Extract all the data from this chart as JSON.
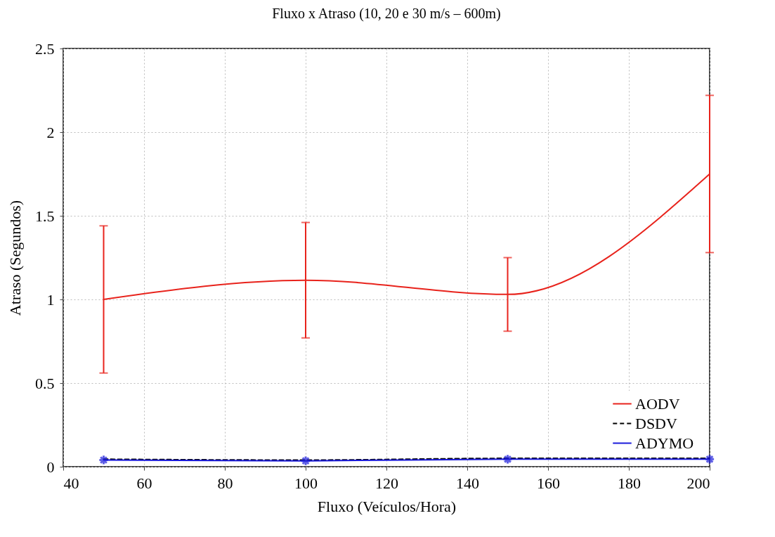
{
  "chart_data": {
    "type": "line",
    "title": "Fluxo x Atraso (10, 20 e 30 m/s – 600m)",
    "xlabel": "Fluxo (Veículos/Hora)",
    "ylabel": "Atraso (Segundos)",
    "x": [
      50,
      100,
      150,
      200
    ],
    "series": [
      {
        "name": "AODV",
        "color": "#e8231c",
        "values": [
          1.0,
          1.115,
          1.03,
          1.75
        ],
        "errors": [
          [
            0.56,
            1.44
          ],
          [
            0.77,
            1.46
          ],
          [
            0.81,
            1.25
          ],
          [
            1.28,
            2.22
          ]
        ],
        "line_style": "solid"
      },
      {
        "name": "DSDV",
        "color": "#000000",
        "values": [
          0.045,
          0.04,
          0.05,
          0.05
        ],
        "line_style": "dashed"
      },
      {
        "name": "ADYMO",
        "color": "#1a1adb",
        "values": [
          0.04,
          0.035,
          0.045,
          0.045
        ],
        "line_style": "solid",
        "marker": "cross"
      }
    ],
    "xlim": [
      40,
      200
    ],
    "xticks": [
      40,
      60,
      80,
      100,
      120,
      140,
      160,
      180,
      200
    ],
    "ylim": [
      0,
      2.5
    ],
    "yticks": [
      0,
      0.5,
      1,
      1.5,
      2,
      2.5
    ],
    "grid": true,
    "legend": "bottom right"
  }
}
